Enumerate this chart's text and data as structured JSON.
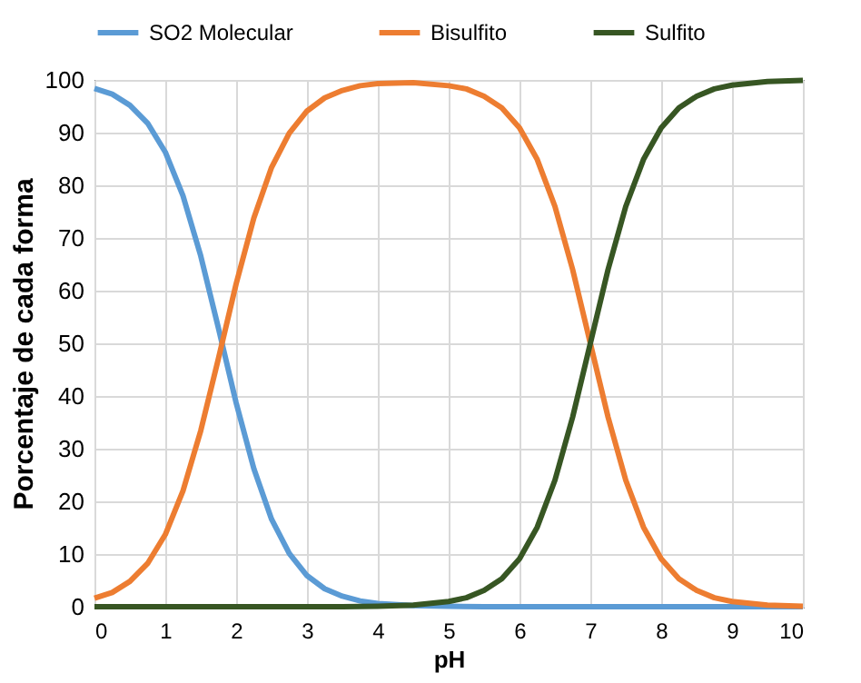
{
  "chart_data": {
    "type": "line",
    "xlabel": "pH",
    "ylabel": "Porcentaje de cada forma",
    "xlim": [
      0,
      10
    ],
    "xticks": [
      0,
      1,
      2,
      3,
      4,
      5,
      6,
      7,
      8,
      9,
      10
    ],
    "ylim": [
      0,
      100
    ],
    "yticks": [
      0,
      10,
      20,
      30,
      40,
      50,
      60,
      70,
      80,
      90,
      100
    ],
    "grid": true,
    "legend": "top",
    "marker": "none",
    "line_style": "solid",
    "series": [
      {
        "name": "SO2 Molecular",
        "color": "#5b9bd5",
        "x": [
          0,
          0.25,
          0.5,
          0.75,
          1,
          1.25,
          1.5,
          1.75,
          2,
          2.25,
          2.5,
          2.75,
          3,
          3.25,
          3.5,
          3.75,
          4,
          4.5,
          5,
          5.5,
          6,
          7,
          8,
          9,
          10
        ],
        "values": [
          98.4,
          97.3,
          95.2,
          91.8,
          86.3,
          78.0,
          66.6,
          52.9,
          38.7,
          26.2,
          16.6,
          10.1,
          5.9,
          3.4,
          2.0,
          1.1,
          0.6,
          0.2,
          0.1,
          0,
          0,
          0,
          0,
          0,
          0
        ]
      },
      {
        "name": "Bisulfito",
        "color": "#ed7d31",
        "x": [
          0,
          0.25,
          0.5,
          0.75,
          1,
          1.25,
          1.5,
          1.75,
          2,
          2.25,
          2.5,
          2.75,
          3,
          3.25,
          3.5,
          3.75,
          4,
          4.5,
          5,
          5.25,
          5.5,
          5.75,
          6,
          6.25,
          6.5,
          6.75,
          7,
          7.25,
          7.5,
          7.75,
          8,
          8.25,
          8.5,
          8.75,
          9,
          9.5,
          10
        ],
        "values": [
          1.6,
          2.7,
          4.8,
          8.2,
          13.7,
          22.0,
          33.4,
          47.1,
          61.3,
          73.8,
          83.4,
          89.9,
          94.1,
          96.6,
          98.0,
          98.9,
          99.3,
          99.5,
          98.9,
          98.3,
          96.9,
          94.7,
          90.9,
          84.9,
          76.0,
          64.0,
          50,
          36.0,
          24.0,
          15.1,
          9.1,
          5.3,
          3.1,
          1.7,
          1.0,
          0.3,
          0.1
        ]
      },
      {
        "name": "Sulfito",
        "color": "#375623",
        "x": [
          0,
          1,
          2,
          3,
          3.5,
          4,
          4.5,
          5,
          5.25,
          5.5,
          5.75,
          6,
          6.25,
          6.5,
          6.75,
          7,
          7.25,
          7.5,
          7.75,
          8,
          8.25,
          8.5,
          8.75,
          9,
          9.5,
          10
        ],
        "values": [
          0,
          0,
          0,
          0,
          0,
          0.1,
          0.3,
          1.0,
          1.7,
          3.1,
          5.3,
          9.1,
          15.1,
          24.0,
          36.0,
          50,
          64.0,
          76.0,
          84.9,
          90.9,
          94.7,
          96.9,
          98.3,
          99.0,
          99.7,
          99.9
        ]
      }
    ]
  }
}
